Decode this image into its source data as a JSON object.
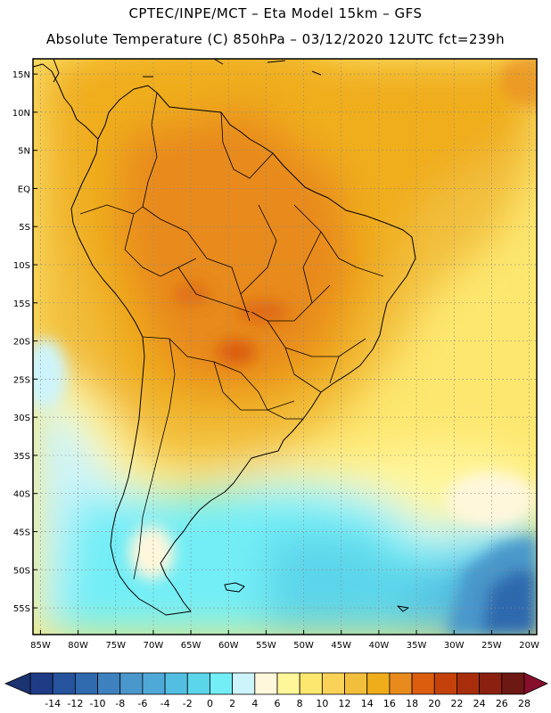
{
  "header": {
    "line1": "CPTEC/INPE/MCT –  Eta Model 15km – GFS",
    "line2": "Absolute Temperature (C) 850hPa – 03/12/2020 12UTC fct=239h"
  },
  "map": {
    "lat_labels": [
      "15N",
      "10N",
      "5N",
      "EQ",
      "5S",
      "10S",
      "15S",
      "20S",
      "25S",
      "30S",
      "35S",
      "40S",
      "45S",
      "50S",
      "55S"
    ],
    "lon_labels": [
      "85W",
      "80W",
      "75W",
      "70W",
      "65W",
      "60W",
      "55W",
      "50W",
      "45W",
      "40W",
      "35W",
      "30W",
      "25W",
      "20W"
    ],
    "lat_values": [
      15,
      10,
      5,
      0,
      -5,
      -10,
      -15,
      -20,
      -25,
      -30,
      -35,
      -40,
      -45,
      -50,
      -55
    ],
    "lon_values": [
      -85,
      -80,
      -75,
      -70,
      -65,
      -60,
      -55,
      -50,
      -45,
      -40,
      -35,
      -30,
      -25,
      -20
    ],
    "extent": {
      "lon_min": -86,
      "lon_max": -19,
      "lat_min": -58.5,
      "lat_max": 17
    }
  },
  "colorbar": {
    "labels": [
      "-14",
      "-12",
      "-10",
      "-8",
      "-6",
      "-4",
      "-2",
      "0",
      "2",
      "4",
      "6",
      "8",
      "10",
      "12",
      "14",
      "16",
      "18",
      "20",
      "22",
      "24",
      "26",
      "28"
    ],
    "colors": [
      "#1f3b86",
      "#26539d",
      "#2f69ae",
      "#3d82bf",
      "#4a97cb",
      "#4fa9d8",
      "#52bfe2",
      "#5bd5ea",
      "#73eef6",
      "#cdf4fb",
      "#fff7dc",
      "#fff69a",
      "#fde76f",
      "#f9d257",
      "#f2bf3c",
      "#f0ad1a",
      "#e88a1c",
      "#db5d0d",
      "#c4420a",
      "#a82e0b",
      "#8c2010",
      "#6e1814"
    ],
    "left_cap": "#1b3370",
    "right_cap": "#860f2c"
  }
}
